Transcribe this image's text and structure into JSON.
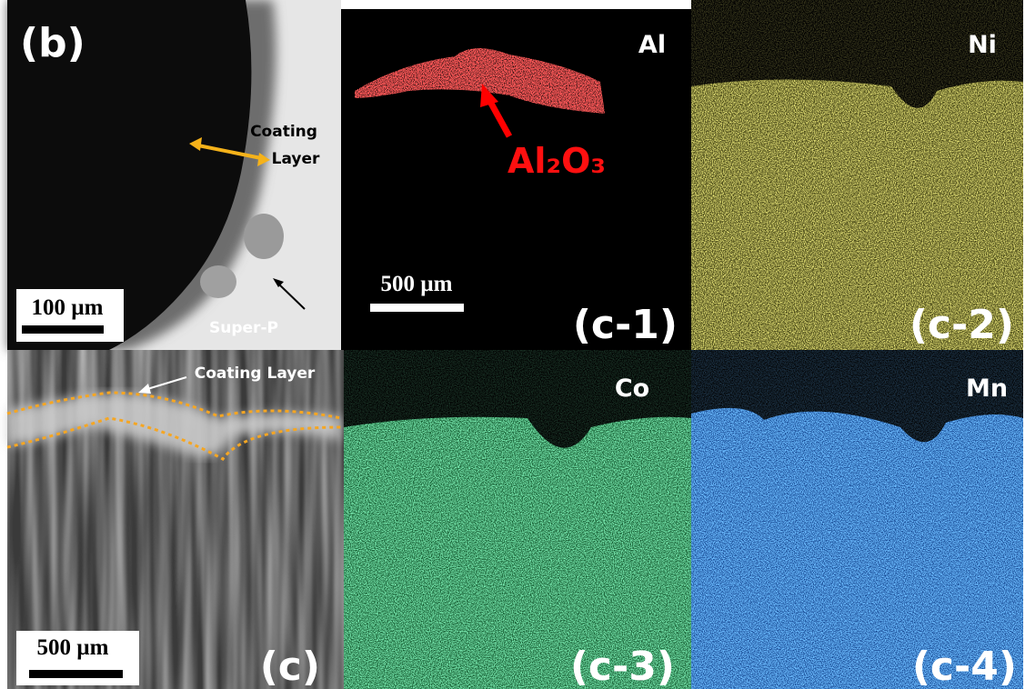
{
  "panels": {
    "b": {
      "label": "(b)",
      "coating_label": [
        "Coating",
        "Layer"
      ],
      "super_p": "Super-P",
      "scale_bar": "100 µm"
    },
    "c": {
      "label": "(c)",
      "coating_label": "Coating Layer",
      "scale_bar": "500 µm"
    },
    "c1": {
      "label": "(c-1)",
      "element": "Al",
      "annotation": "Al₂O₃",
      "scale_bar": "500 µm"
    },
    "c2": {
      "label": "(c-2)",
      "element": "Ni"
    },
    "c3": {
      "label": "(c-3)",
      "element": "Co"
    },
    "c4": {
      "label": "(c-4)",
      "element": "Mn"
    }
  }
}
